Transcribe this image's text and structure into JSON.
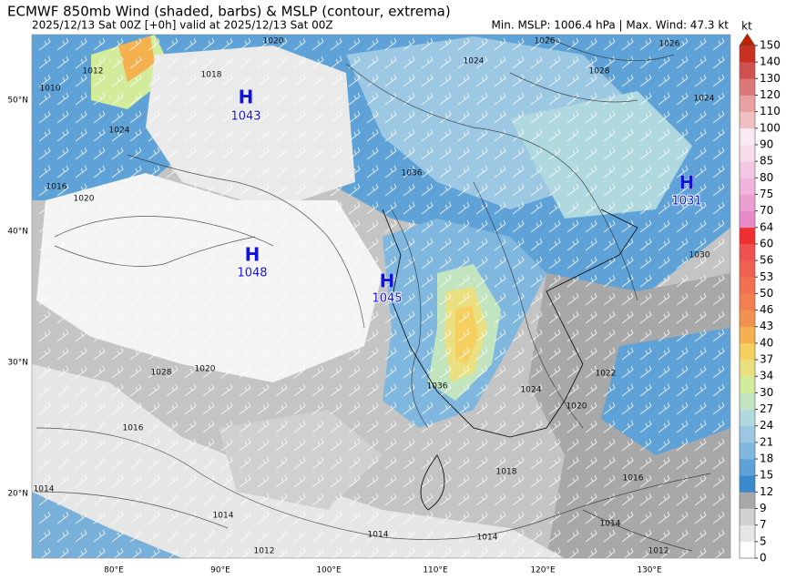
{
  "title": "ECMWF 850mb Wind (shaded, barbs) & MSLP (contour, extrema)",
  "subtitle": "2025/12/13 Sat 00Z [+0h] valid at 2025/12/13 Sat 00Z",
  "stats": "Min. MSLP: 1006.4 hPa | Max. Wind: 47.3 kt",
  "map": {
    "lat_labels": [
      "50°N",
      "40°N",
      "30°N",
      "20°N"
    ],
    "lon_labels": [
      "80°E",
      "90°E",
      "100°E",
      "110°E",
      "120°E",
      "130°E"
    ],
    "highs": [
      {
        "label": "H",
        "value": 1043
      },
      {
        "label": "H",
        "value": 1048
      },
      {
        "label": "H",
        "value": 1045
      },
      {
        "label": "H",
        "value": 1031
      }
    ],
    "contour_labels": [
      1010,
      1012,
      1020,
      1026,
      1026,
      1028,
      1024,
      1024,
      1018,
      1024,
      1016,
      1020,
      1036,
      1030,
      1028,
      1020,
      1036,
      1024,
      1022,
      1020,
      1016,
      1018,
      1016,
      1014,
      1014,
      1012,
      1014,
      1014,
      1012,
      1014
    ]
  },
  "colorbar": {
    "unit": "kt",
    "levels": [
      0,
      5,
      7,
      9,
      12,
      15,
      18,
      21,
      24,
      27,
      30,
      34,
      37,
      40,
      43,
      46,
      50,
      53,
      56,
      60,
      64,
      70,
      75,
      80,
      85,
      90,
      100,
      110,
      120,
      130,
      140,
      150
    ],
    "colors": [
      "#ffffff",
      "#e6e6e6",
      "#d0d0d0",
      "#a8a8a8",
      "#3a8acb",
      "#5ea2d7",
      "#7fb7df",
      "#9cc8e4",
      "#b0d8df",
      "#c2e5c0",
      "#d3ec9c",
      "#ebe080",
      "#f5cf60",
      "#f5b050",
      "#f29250",
      "#f08050",
      "#f07050",
      "#f06050",
      "#f05050",
      "#f03030",
      "#e88ac8",
      "#eca0d0",
      "#f0b4dc",
      "#f4c8e4",
      "#f8dcec",
      "#f9eaf4",
      "#f0c0c0",
      "#e8a0a0",
      "#dc7878",
      "#d05050",
      "#c83020"
    ],
    "extend_color": "#c02000"
  }
}
